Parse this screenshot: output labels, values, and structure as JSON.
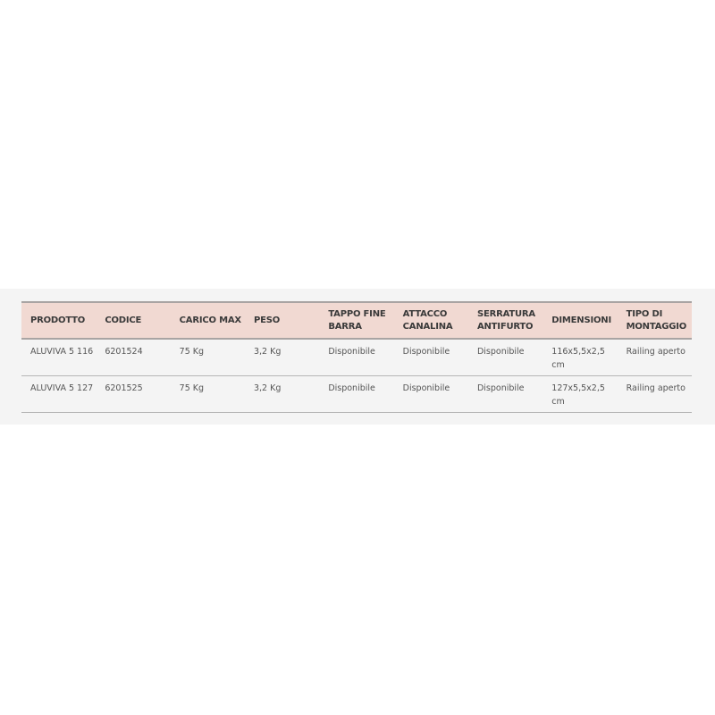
{
  "table": {
    "headers": [
      "PRODOTTO",
      "CODICE",
      "CARICO MAX",
      "PESO",
      "TAPPO FINE BARRA",
      "ATTACCO CANALINA",
      "SERRATURA ANTIFURTO",
      "DIMENSIONI",
      "TIPO DI MONTAGGIO"
    ],
    "rows": [
      [
        "ALUVIVA 5 116",
        "6201524",
        "75 Kg",
        "3,2 Kg",
        "Disponibile",
        "Disponibile",
        "Disponibile",
        "116x5,5x2,5 cm",
        "Railing aperto"
      ],
      [
        "ALUVIVA 5 127",
        "6201525",
        "75 Kg",
        "3,2 Kg",
        "Disponibile",
        "Disponibile",
        "Disponibile",
        "127x5,5x2,5 cm",
        "Railing aperto"
      ]
    ]
  },
  "colors": {
    "header_bg": "#f1d9d2",
    "band_bg": "#f4f4f4"
  }
}
